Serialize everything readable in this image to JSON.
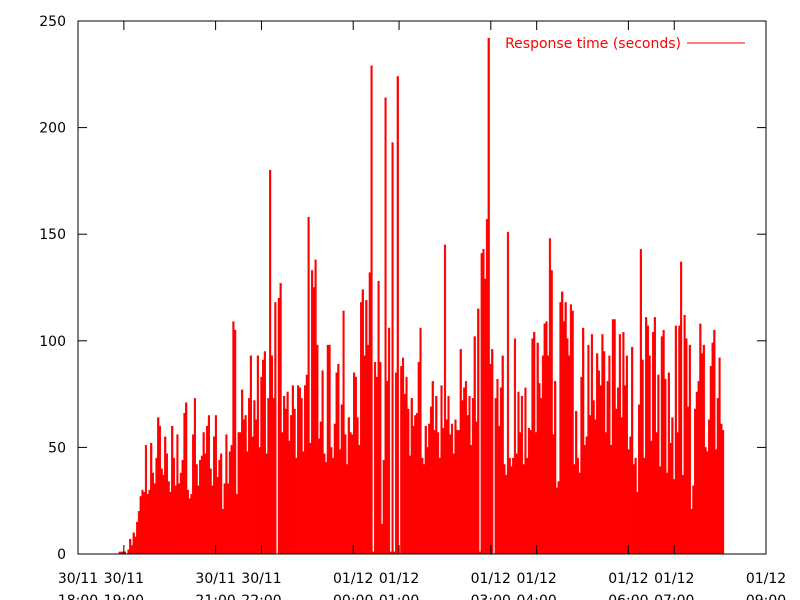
{
  "chart_data": {
    "type": "bar",
    "title": "",
    "xlabel": "",
    "ylabel": "",
    "ylim": [
      0,
      250
    ],
    "yticks": [
      "0",
      "50",
      "100",
      "150",
      "200",
      "250"
    ],
    "xlim": [
      "2013-11-30 18:00",
      "2013-12-01 09:00"
    ],
    "xticks": [
      {
        "t": "2013-11-30 18:00",
        "line1": "30/11",
        "line2": "18:00"
      },
      {
        "t": "2013-11-30 19:00",
        "line1": "30/11",
        "line2": "19:00"
      },
      {
        "t": "2013-11-30 21:00",
        "line1": "30/11",
        "line2": "21:00"
      },
      {
        "t": "2013-11-30 22:00",
        "line1": "30/11",
        "line2": "22:00"
      },
      {
        "t": "2013-12-01 00:00",
        "line1": "01/12",
        "line2": "00:00"
      },
      {
        "t": "2013-12-01 01:00",
        "line1": "01/12",
        "line2": "01:00"
      },
      {
        "t": "2013-12-01 03:00",
        "line1": "01/12",
        "line2": "03:00"
      },
      {
        "t": "2013-12-01 04:00",
        "line1": "01/12",
        "line2": "04:00"
      },
      {
        "t": "2013-12-01 06:00",
        "line1": "01/12",
        "line2": "06:00"
      },
      {
        "t": "2013-12-01 07:00",
        "line1": "01/12",
        "line2": "07:00"
      },
      {
        "t": "2013-12-01 09:00",
        "line1": "01/12",
        "line2": "09:00"
      }
    ],
    "grid": false,
    "legend_position": "top-right",
    "series": [
      {
        "name": "Response time (seconds)",
        "color": "#ff0000",
        "start": "2013-11-30 18:42",
        "end": "2013-12-01 08:05",
        "values": [
          0,
          0,
          0,
          0,
          0,
          1,
          1,
          1,
          1,
          0,
          2,
          7,
          4,
          10,
          8,
          15,
          20,
          27,
          30,
          29,
          51,
          28,
          30,
          52,
          38,
          33,
          45,
          64,
          60,
          40,
          37,
          55,
          47,
          34,
          29,
          60,
          45,
          32,
          56,
          33,
          38,
          44,
          66,
          71,
          30,
          26,
          28,
          56,
          73,
          42,
          32,
          44,
          46,
          57,
          47,
          60,
          65,
          40,
          32,
          55,
          65,
          36,
          44,
          47,
          21,
          33,
          56,
          33,
          48,
          51,
          109,
          105,
          28,
          57,
          57,
          77,
          63,
          65,
          48,
          73,
          93,
          55,
          72,
          63,
          93,
          50,
          83,
          91,
          95,
          47,
          73,
          180,
          93,
          73,
          118,
          0,
          120,
          127,
          57,
          74,
          68,
          76,
          53,
          65,
          79,
          68,
          45,
          79,
          78,
          73,
          48,
          79,
          84,
          158,
          52,
          133,
          125,
          138,
          98,
          54,
          62,
          86,
          47,
          43,
          98,
          98,
          50,
          45,
          61,
          85,
          89,
          49,
          70,
          114,
          56,
          42,
          64,
          57,
          56,
          85,
          83,
          64,
          51,
          118,
          124,
          93,
          119,
          98,
          132,
          229,
          1,
          90,
          83,
          128,
          90,
          14,
          44,
          214,
          81,
          106,
          1,
          193,
          1,
          85,
          224,
          0,
          88,
          92,
          75,
          83,
          68,
          46,
          73,
          60,
          65,
          66,
          90,
          106,
          45,
          42,
          60,
          50,
          61,
          69,
          81,
          58,
          74,
          57,
          45,
          79,
          59,
          145,
          63,
          74,
          56,
          61,
          47,
          63,
          58,
          58,
          96,
          72,
          78,
          81,
          65,
          74,
          51,
          73,
          102,
          62,
          115,
          1,
          141,
          143,
          129,
          157,
          242,
          89,
          96,
          0,
          73,
          82,
          60,
          78,
          93,
          42,
          37,
          151,
          45,
          41,
          45,
          101,
          47,
          76,
          57,
          74,
          42,
          78,
          45,
          59,
          58,
          101,
          104,
          57,
          99,
          80,
          73,
          93,
          108,
          109,
          93,
          148,
          133,
          56,
          81,
          31,
          34,
          118,
          123,
          109,
          118,
          101,
          93,
          117,
          114,
          42,
          67,
          45,
          38,
          83,
          106,
          51,
          55,
          98,
          65,
          103,
          72,
          63,
          94,
          86,
          79,
          103,
          95,
          57,
          81,
          93,
          51,
          110,
          110,
          68,
          78,
          103,
          64,
          104,
          79,
          93,
          49,
          55,
          97,
          42,
          45,
          29,
          70,
          143,
          91,
          45,
          111,
          107,
          93,
          53,
          104,
          111,
          57,
          84,
          41,
          102,
          105,
          82,
          38,
          85,
          52,
          64,
          35,
          107,
          57,
          107,
          137,
          37,
          112,
          101,
          69,
          98,
          21,
          32,
          68,
          76,
          81,
          108,
          94,
          98,
          50,
          48,
          63,
          88,
          99,
          105,
          49,
          73,
          92,
          61,
          58
        ]
      }
    ]
  }
}
